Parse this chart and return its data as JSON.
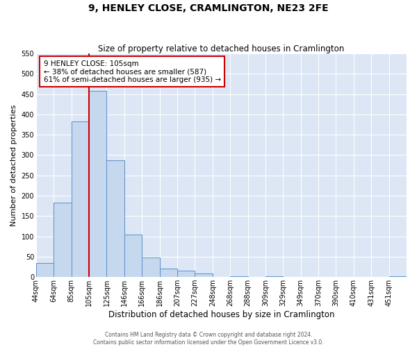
{
  "title": "9, HENLEY CLOSE, CRAMLINGTON, NE23 2FE",
  "subtitle": "Size of property relative to detached houses in Cramlington",
  "xlabel": "Distribution of detached houses by size in Cramlington",
  "ylabel": "Number of detached properties",
  "bin_labels": [
    "44sqm",
    "64sqm",
    "85sqm",
    "105sqm",
    "125sqm",
    "146sqm",
    "166sqm",
    "186sqm",
    "207sqm",
    "227sqm",
    "248sqm",
    "268sqm",
    "288sqm",
    "309sqm",
    "329sqm",
    "349sqm",
    "370sqm",
    "390sqm",
    "410sqm",
    "431sqm",
    "451sqm"
  ],
  "bar_heights": [
    35,
    183,
    383,
    458,
    287,
    104,
    48,
    21,
    15,
    8,
    0,
    2,
    0,
    2,
    0,
    0,
    0,
    0,
    0,
    0,
    2
  ],
  "bar_color": "#c5d8ee",
  "bar_edge_color": "#5b8fc9",
  "fig_background_color": "#ffffff",
  "ax_background_color": "#dce6f5",
  "grid_color": "#ffffff",
  "vline_x_index": 3,
  "vline_color": "#cc0000",
  "annotation_title": "9 HENLEY CLOSE: 105sqm",
  "annotation_line1": "← 38% of detached houses are smaller (587)",
  "annotation_line2": "61% of semi-detached houses are larger (935) →",
  "annotation_box_edge_color": "#cc0000",
  "annotation_box_face_color": "#ffffff",
  "ylim": [
    0,
    550
  ],
  "yticks": [
    0,
    50,
    100,
    150,
    200,
    250,
    300,
    350,
    400,
    450,
    500,
    550
  ],
  "title_fontsize": 10,
  "subtitle_fontsize": 8.5,
  "ylabel_fontsize": 8,
  "xlabel_fontsize": 8.5,
  "tick_fontsize": 7,
  "annotation_fontsize": 7.5,
  "footer_line1": "Contains HM Land Registry data © Crown copyright and database right 2024.",
  "footer_line2": "Contains public sector information licensed under the Open Government Licence v3.0.",
  "footer_fontsize": 5.5
}
